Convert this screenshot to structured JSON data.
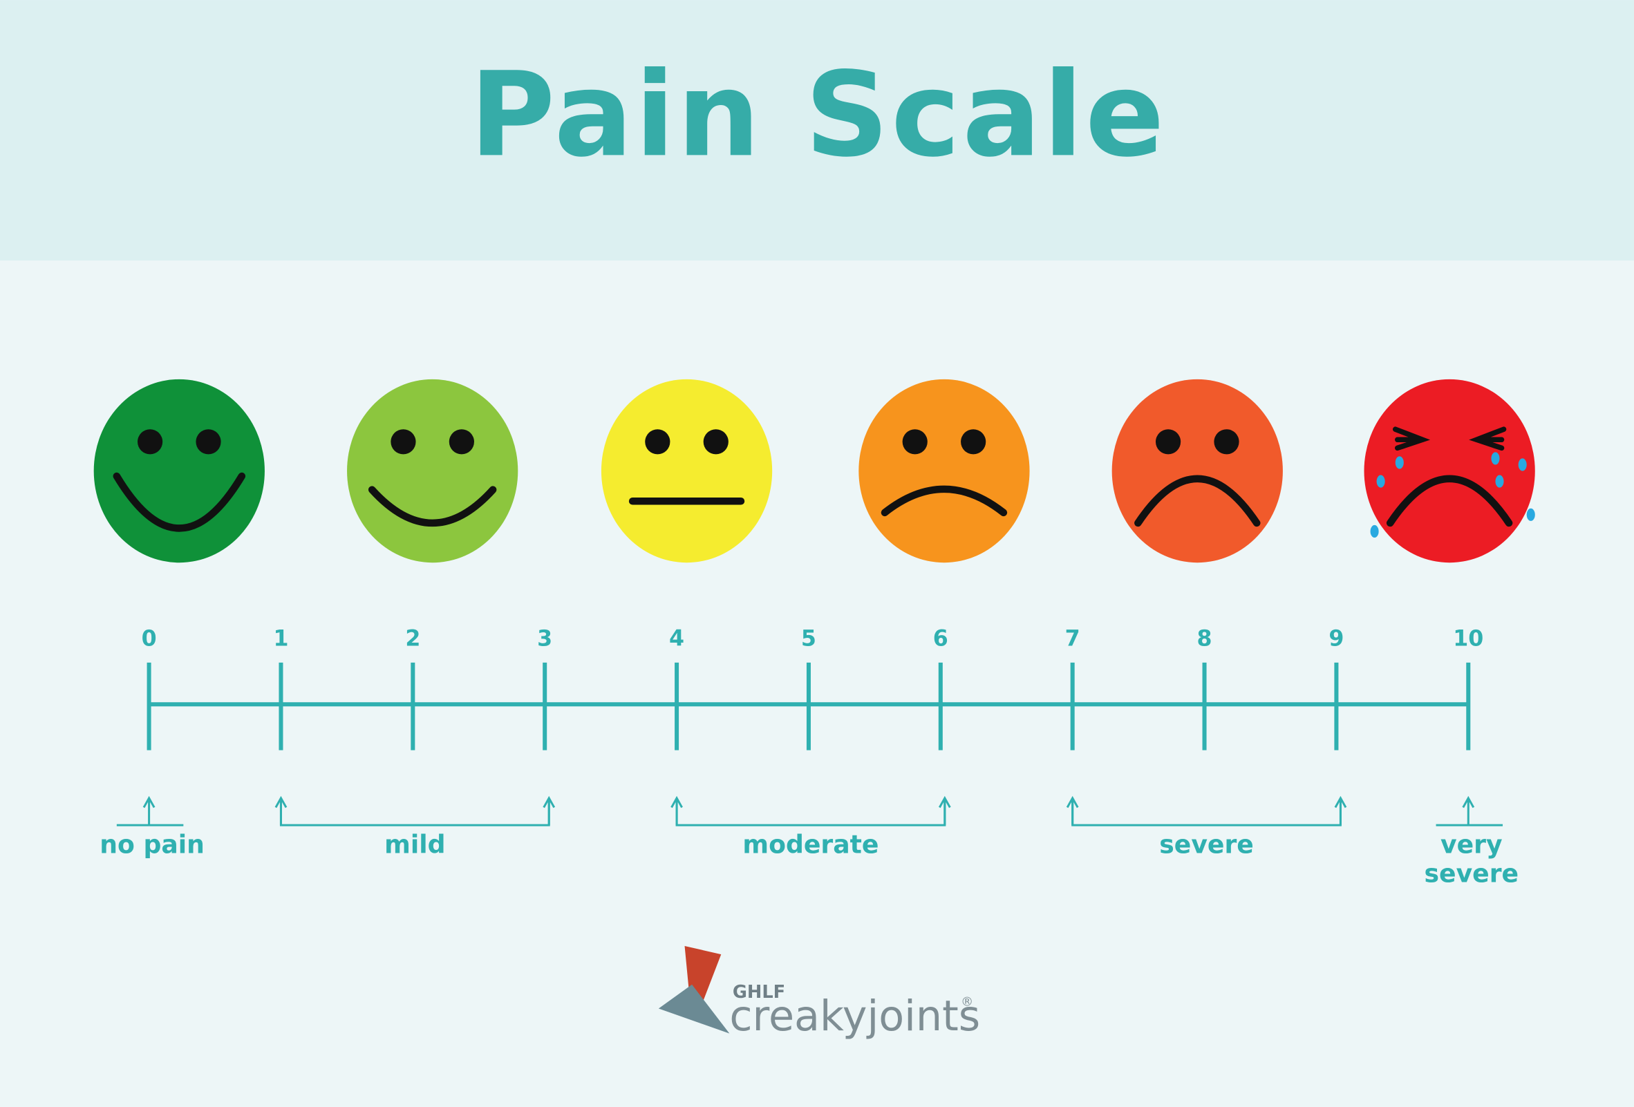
{
  "header": {
    "title": "Pain Scale"
  },
  "faces": [
    {
      "color": "#0f9139"
    },
    {
      "color": "#8cc63e"
    },
    {
      "color": "#f5ec2f"
    },
    {
      "color": "#f7941d"
    },
    {
      "color": "#f15a2b"
    },
    {
      "color": "#ec1c24"
    }
  ],
  "scale": {
    "ticks": [
      0,
      1,
      2,
      3,
      4,
      5,
      6,
      7,
      8,
      9,
      10
    ],
    "color": "#2fb0b0"
  },
  "ranges": [
    {
      "label": [
        "no pain"
      ],
      "from": 0,
      "to": 0
    },
    {
      "label": [
        "mild"
      ],
      "from": 1,
      "to": 3
    },
    {
      "label": [
        "moderate"
      ],
      "from": 4,
      "to": 6
    },
    {
      "label": [
        "severe"
      ],
      "from": 7,
      "to": 9
    },
    {
      "label": [
        "very",
        "severe"
      ],
      "from": 10,
      "to": 10
    }
  ],
  "logo": {
    "org": "GHLF",
    "brand": "creakyjoints",
    "mark": "®"
  }
}
